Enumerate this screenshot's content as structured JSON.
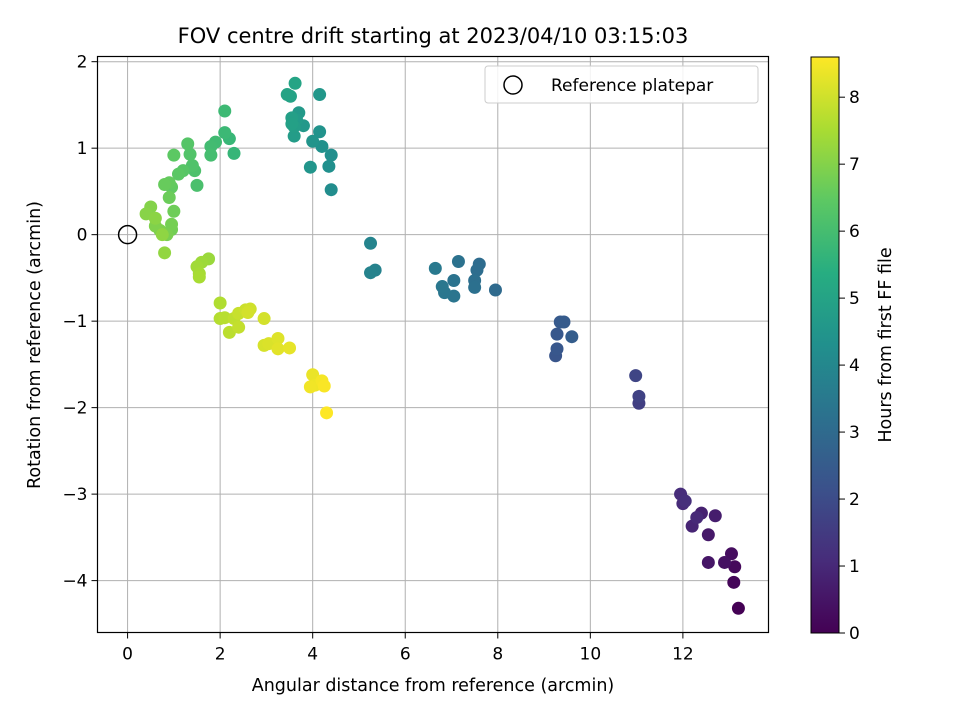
{
  "chart_data": {
    "type": "scatter",
    "title": "FOV centre drift starting at 2023/04/10 03:15:03",
    "xlabel": "Angular distance from reference (arcmin)",
    "ylabel": "Rotation from reference (arcmin)",
    "xlim": [
      -0.65,
      13.85
    ],
    "ylim": [
      -4.6,
      2.06
    ],
    "x_ticks": [
      0,
      2,
      4,
      6,
      8,
      10,
      12
    ],
    "x_tick_labels": [
      "0",
      "2",
      "4",
      "6",
      "8",
      "10",
      "12"
    ],
    "y_ticks": [
      2,
      1,
      0,
      -1,
      -2,
      -3,
      -4
    ],
    "y_tick_labels": [
      "2",
      "1",
      "0",
      "−1",
      "−2",
      "−3",
      "−4"
    ],
    "grid": true,
    "legend": {
      "placement": "top-right",
      "entries": [
        "Reference platepar"
      ]
    },
    "reference_point": {
      "label": "Reference platepar",
      "x": 0,
      "y": 0
    },
    "colorbar": {
      "label": "Hours from first FF file",
      "min": 0,
      "max": 8.6,
      "ticks": [
        0,
        1,
        2,
        3,
        4,
        5,
        6,
        7,
        8
      ],
      "tick_labels": [
        "0",
        "1",
        "2",
        "3",
        "4",
        "5",
        "6",
        "7",
        "8"
      ],
      "colormap": "viridis"
    },
    "points": [
      [
        13.2,
        -4.32,
        0.0
      ],
      [
        13.1,
        -4.02,
        0.1
      ],
      [
        13.12,
        -3.84,
        0.2
      ],
      [
        13.05,
        -3.69,
        0.3
      ],
      [
        12.9,
        -3.79,
        0.4
      ],
      [
        12.55,
        -3.79,
        0.5
      ],
      [
        12.55,
        -3.47,
        0.6
      ],
      [
        12.7,
        -3.25,
        0.7
      ],
      [
        12.4,
        -3.22,
        0.8
      ],
      [
        12.2,
        -3.37,
        0.9
      ],
      [
        12.3,
        -3.27,
        1.0
      ],
      [
        12.0,
        -3.11,
        1.05
      ],
      [
        11.95,
        -3.0,
        1.1
      ],
      [
        12.05,
        -3.08,
        1.15
      ],
      [
        11.05,
        -1.95,
        1.6
      ],
      [
        11.05,
        -1.87,
        1.7
      ],
      [
        10.98,
        -1.63,
        1.8
      ],
      [
        9.25,
        -1.4,
        2.3
      ],
      [
        9.28,
        -1.32,
        2.35
      ],
      [
        9.28,
        -1.15,
        2.4
      ],
      [
        9.35,
        -1.01,
        2.45
      ],
      [
        9.43,
        -1.01,
        2.5
      ],
      [
        9.6,
        -1.18,
        2.55
      ],
      [
        7.95,
        -0.64,
        3.0
      ],
      [
        7.6,
        -0.34,
        3.05
      ],
      [
        7.55,
        -0.41,
        3.1
      ],
      [
        7.5,
        -0.53,
        3.15
      ],
      [
        7.5,
        -0.61,
        3.2
      ],
      [
        7.15,
        -0.31,
        3.25
      ],
      [
        7.05,
        -0.53,
        3.3
      ],
      [
        7.05,
        -0.71,
        3.35
      ],
      [
        6.85,
        -0.67,
        3.4
      ],
      [
        6.8,
        -0.6,
        3.45
      ],
      [
        6.65,
        -0.39,
        3.5
      ],
      [
        5.35,
        -0.41,
        3.8
      ],
      [
        5.25,
        -0.44,
        3.85
      ],
      [
        5.25,
        -0.1,
        3.9
      ],
      [
        4.4,
        0.52,
        4.2
      ],
      [
        4.4,
        0.92,
        4.25
      ],
      [
        4.35,
        0.79,
        4.3
      ],
      [
        4.2,
        1.02,
        4.35
      ],
      [
        4.15,
        1.19,
        4.4
      ],
      [
        4.0,
        1.08,
        4.45
      ],
      [
        3.95,
        0.78,
        4.5
      ],
      [
        4.15,
        1.62,
        4.55
      ],
      [
        3.8,
        1.26,
        4.6
      ],
      [
        3.7,
        1.41,
        4.65
      ],
      [
        3.65,
        1.33,
        4.7
      ],
      [
        3.6,
        1.14,
        4.75
      ],
      [
        3.6,
        1.25,
        4.8
      ],
      [
        3.55,
        1.35,
        4.85
      ],
      [
        3.55,
        1.28,
        4.9
      ],
      [
        3.52,
        1.6,
        4.95
      ],
      [
        3.45,
        1.62,
        5.0
      ],
      [
        3.62,
        1.75,
        5.05
      ],
      [
        2.3,
        0.94,
        5.7
      ],
      [
        2.2,
        1.11,
        5.75
      ],
      [
        2.1,
        1.18,
        5.8
      ],
      [
        2.1,
        1.43,
        5.85
      ],
      [
        1.9,
        1.07,
        5.9
      ],
      [
        1.8,
        1.02,
        5.95
      ],
      [
        1.8,
        0.92,
        6.0
      ],
      [
        1.5,
        0.57,
        6.1
      ],
      [
        1.45,
        0.74,
        6.15
      ],
      [
        1.4,
        0.8,
        6.2
      ],
      [
        1.35,
        0.93,
        6.25
      ],
      [
        1.3,
        1.05,
        6.3
      ],
      [
        1.2,
        0.74,
        6.35
      ],
      [
        1.1,
        0.7,
        6.4
      ],
      [
        1.0,
        0.92,
        6.45
      ],
      [
        0.95,
        0.55,
        6.5
      ],
      [
        0.9,
        0.6,
        6.55
      ],
      [
        0.8,
        0.58,
        6.6
      ],
      [
        0.9,
        0.43,
        6.65
      ],
      [
        1.0,
        0.27,
        6.7
      ],
      [
        0.95,
        0.06,
        6.75
      ],
      [
        0.95,
        0.12,
        6.8
      ],
      [
        0.85,
        0.0,
        6.85
      ],
      [
        0.7,
        0.05,
        6.9
      ],
      [
        0.6,
        0.1,
        6.95
      ],
      [
        0.5,
        0.32,
        7.0
      ],
      [
        0.4,
        0.24,
        7.05
      ],
      [
        0.6,
        0.19,
        7.1
      ],
      [
        0.75,
        0.0,
        7.15
      ],
      [
        0.8,
        -0.21,
        7.2
      ],
      [
        1.75,
        -0.28,
        7.3
      ],
      [
        1.6,
        -0.32,
        7.35
      ],
      [
        1.5,
        -0.37,
        7.4
      ],
      [
        1.55,
        -0.45,
        7.45
      ],
      [
        1.55,
        -0.49,
        7.5
      ],
      [
        2.0,
        -0.79,
        7.6
      ],
      [
        2.0,
        -0.97,
        7.65
      ],
      [
        2.1,
        -0.96,
        7.7
      ],
      [
        2.2,
        -1.13,
        7.75
      ],
      [
        2.3,
        -0.97,
        7.8
      ],
      [
        2.4,
        -1.07,
        7.85
      ],
      [
        2.4,
        -0.91,
        7.9
      ],
      [
        2.55,
        -0.87,
        7.95
      ],
      [
        2.65,
        -0.86,
        8.0
      ],
      [
        2.6,
        -0.9,
        8.05
      ],
      [
        2.95,
        -0.97,
        8.05
      ],
      [
        2.95,
        -1.28,
        8.1
      ],
      [
        3.05,
        -1.26,
        8.15
      ],
      [
        3.25,
        -1.2,
        8.2
      ],
      [
        3.25,
        -1.32,
        8.25
      ],
      [
        3.5,
        -1.31,
        8.3
      ],
      [
        4.0,
        -1.62,
        8.35
      ],
      [
        4.05,
        -1.74,
        8.4
      ],
      [
        3.95,
        -1.76,
        8.45
      ],
      [
        4.2,
        -1.69,
        8.5
      ],
      [
        4.25,
        -1.75,
        8.55
      ],
      [
        4.3,
        -2.06,
        8.6
      ]
    ]
  }
}
